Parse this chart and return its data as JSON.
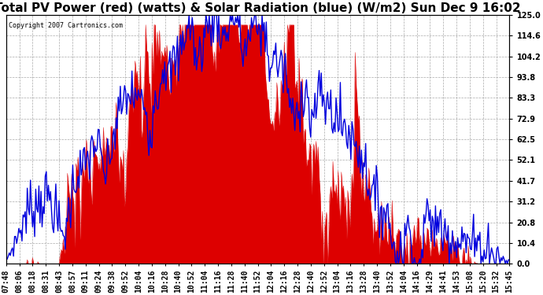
{
  "title": "Total PV Power (red) (watts) & Solar Radiation (blue) (W/m2) Sun Dec 9 16:02",
  "copyright": "Copyright 2007 Cartronics.com",
  "background_color": "#ffffff",
  "grid_color": "#aaaaaa",
  "x_labels": [
    "07:48",
    "08:06",
    "08:18",
    "08:31",
    "08:43",
    "08:57",
    "09:11",
    "09:24",
    "09:38",
    "09:52",
    "10:04",
    "10:16",
    "10:28",
    "10:40",
    "10:52",
    "11:04",
    "11:16",
    "11:28",
    "11:40",
    "11:52",
    "12:04",
    "12:16",
    "12:28",
    "12:40",
    "12:52",
    "13:04",
    "13:16",
    "13:28",
    "13:40",
    "13:52",
    "14:04",
    "14:16",
    "14:29",
    "14:41",
    "14:53",
    "15:08",
    "15:20",
    "15:32",
    "15:45"
  ],
  "y_right_ticks": [
    0.0,
    10.4,
    20.8,
    31.2,
    41.7,
    52.1,
    62.5,
    72.9,
    83.3,
    93.8,
    104.2,
    114.6,
    125.0
  ],
  "red_color": "#dd0000",
  "blue_color": "#0000dd",
  "ylim": [
    0,
    125
  ],
  "title_fontsize": 11,
  "tick_fontsize": 7
}
